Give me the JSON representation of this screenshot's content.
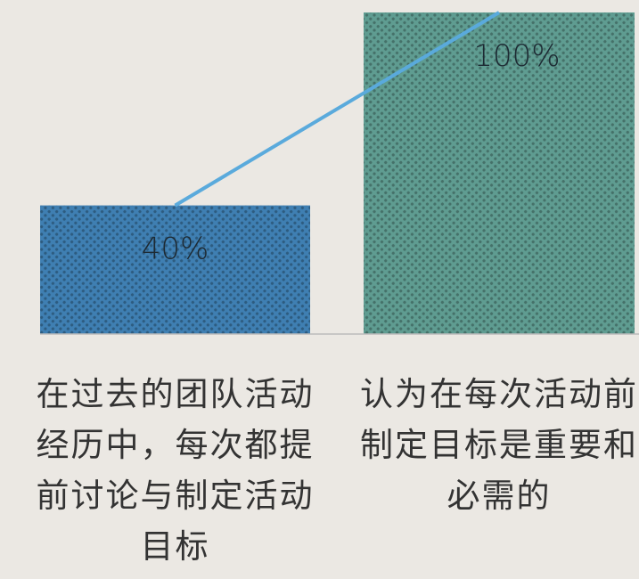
{
  "chart_data": {
    "type": "bar",
    "categories": [
      "在过去的团队活动经历中，每次都提前讨论与制定活动目标",
      "认为在每次活动前制定目标是重要和必需的"
    ],
    "values": [
      40,
      100
    ],
    "value_labels": [
      "40%",
      "100%"
    ],
    "colors": [
      "#3f7fb2",
      "#5f9c91"
    ],
    "line_color": "#5aaadc"
  }
}
